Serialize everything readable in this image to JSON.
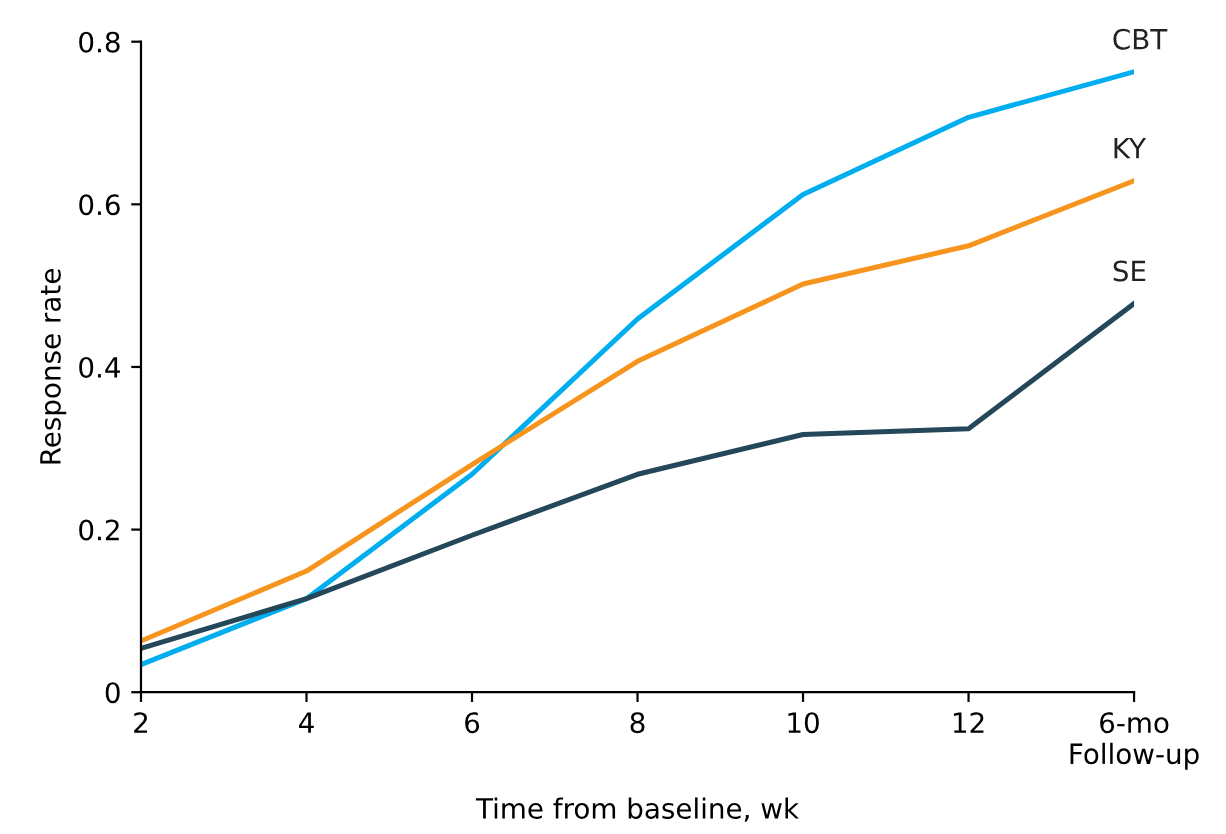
{
  "chart_data": {
    "type": "line",
    "xlabel": "Time from baseline, wk",
    "ylabel": "Response rate",
    "categories": [
      "2",
      "4",
      "6",
      "8",
      "10",
      "12",
      "6-mo\nFollow-up"
    ],
    "ylim": [
      0,
      0.8
    ],
    "yticks": [
      0,
      0.2,
      0.4,
      0.6,
      0.8
    ],
    "grid": false,
    "legend": false,
    "marker": "none",
    "line_style": "solid",
    "series": [
      {
        "name": "CBT",
        "color": "#00aeef",
        "values": [
          0.034,
          0.115,
          0.268,
          0.459,
          0.612,
          0.707,
          0.763
        ]
      },
      {
        "name": "KY",
        "color": "#f7941d",
        "values": [
          0.063,
          0.149,
          0.28,
          0.407,
          0.502,
          0.549,
          0.629
        ]
      },
      {
        "name": "SE",
        "color": "#24475a",
        "values": [
          0.054,
          0.115,
          0.193,
          0.268,
          0.317,
          0.324,
          0.478
        ]
      }
    ]
  }
}
